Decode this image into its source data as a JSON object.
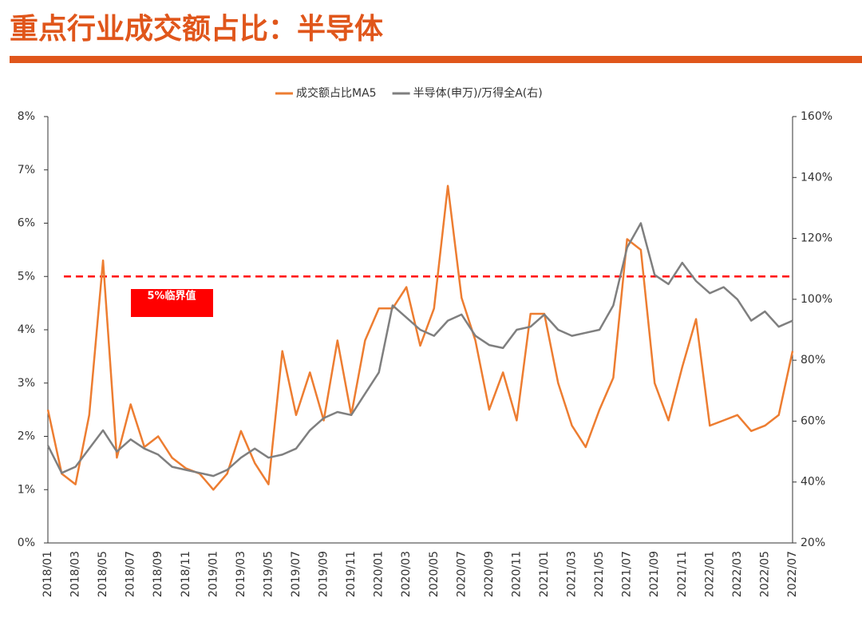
{
  "chart_data": {
    "type": "line",
    "title": "重点行业成交额占比：半导体",
    "categories": [
      "2018/01",
      null,
      "2018/03",
      null,
      "2018/05",
      null,
      "2018/07",
      null,
      "2018/09",
      null,
      "2018/11",
      null,
      "2019/01",
      null,
      "2019/03",
      null,
      "2019/05",
      null,
      "2019/07",
      null,
      "2019/09",
      null,
      "2019/11",
      null,
      "2020/01",
      null,
      "2020/03",
      null,
      "2020/05",
      null,
      "2020/07",
      null,
      "2020/09",
      null,
      "2020/11",
      null,
      "2021/01",
      null,
      "2021/03",
      null,
      "2021/05",
      null,
      "2021/07",
      null,
      "2021/09",
      null,
      "2021/11",
      null,
      "2022/01",
      null,
      "2022/03",
      null,
      "2022/05",
      null,
      "2022/07"
    ],
    "series": [
      {
        "name": "成交额占比MA5",
        "color": "#ed7d31",
        "axis": "y",
        "values": [
          2.5,
          1.3,
          1.1,
          2.4,
          5.3,
          1.6,
          2.6,
          1.8,
          2.0,
          1.6,
          1.4,
          1.3,
          1.0,
          1.3,
          2.1,
          1.5,
          1.1,
          3.6,
          2.4,
          3.2,
          2.3,
          3.8,
          2.4,
          3.8,
          4.4,
          4.4,
          4.8,
          3.7,
          4.4,
          6.7,
          4.6,
          3.8,
          2.5,
          3.2,
          2.3,
          4.3,
          4.3,
          3.0,
          2.2,
          1.8,
          2.5,
          3.1,
          5.7,
          5.5,
          3.0,
          2.3,
          3.3,
          4.2,
          2.2,
          2.3,
          2.4,
          2.1,
          2.2,
          2.4,
          3.6
        ]
      },
      {
        "name": "半导体(申万)/万得全A(右)",
        "color": "#7f7f7f",
        "axis": "y2",
        "values": [
          52,
          43,
          45,
          51,
          57,
          50,
          54,
          51,
          49,
          45,
          44,
          43,
          42,
          44,
          48,
          51,
          48,
          49,
          51,
          57,
          61,
          63,
          62,
          69,
          76,
          98,
          94,
          90,
          88,
          93,
          95,
          88,
          85,
          84,
          90,
          91,
          95,
          90,
          88,
          89,
          90,
          98,
          117,
          125,
          108,
          105,
          112,
          106,
          102,
          104,
          100,
          93,
          96,
          91,
          93
        ]
      }
    ],
    "ylim": [
      0,
      8
    ],
    "yticks": [
      {
        "value": 0,
        "label": "0%"
      },
      {
        "value": 1,
        "label": "1%"
      },
      {
        "value": 2,
        "label": "2%"
      },
      {
        "value": 3,
        "label": "3%"
      },
      {
        "value": 4,
        "label": "4%"
      },
      {
        "value": 5,
        "label": "5%"
      },
      {
        "value": 6,
        "label": "6%"
      },
      {
        "value": 7,
        "label": "7%"
      },
      {
        "value": 8,
        "label": "8%"
      }
    ],
    "y2lim": [
      20,
      160
    ],
    "y2ticks": [
      {
        "value": 20,
        "label": "20%"
      },
      {
        "value": 40,
        "label": "40%"
      },
      {
        "value": 60,
        "label": "60%"
      },
      {
        "value": 80,
        "label": "80%"
      },
      {
        "value": 100,
        "label": "100%"
      },
      {
        "value": 120,
        "label": "120%"
      },
      {
        "value": 140,
        "label": "140%"
      },
      {
        "value": 160,
        "label": "160%"
      }
    ],
    "reference_line": {
      "value": 5,
      "label": "5%临界值",
      "color": "#ff0000"
    },
    "legend": "top"
  }
}
